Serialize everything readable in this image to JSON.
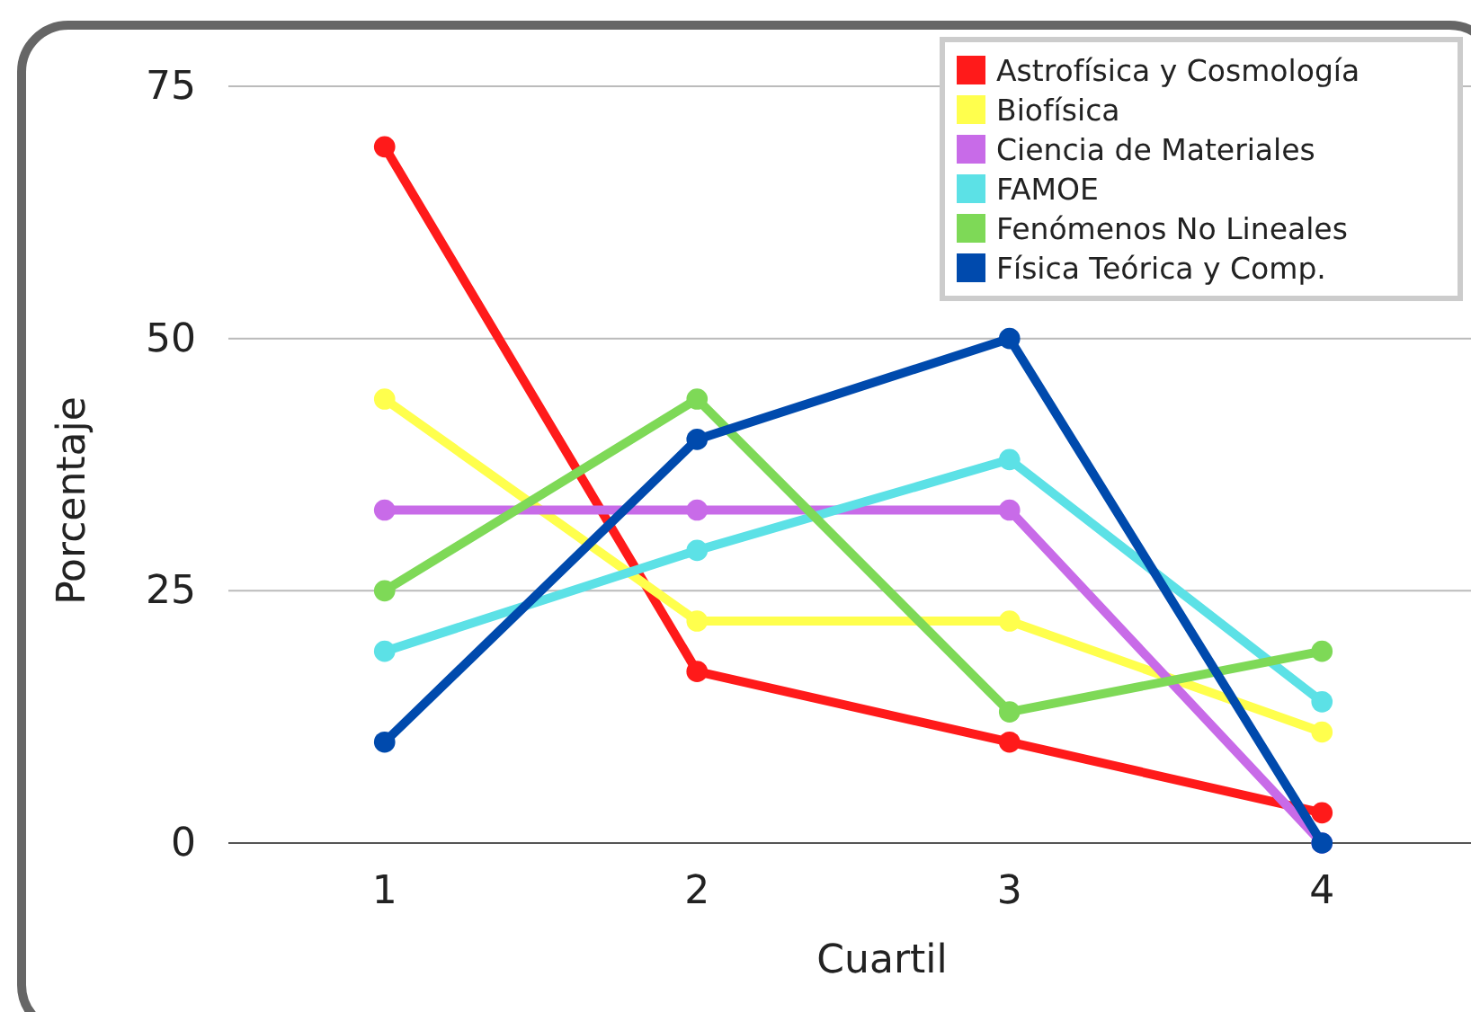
{
  "chart_data": {
    "type": "line",
    "xlabel": "Cuartil",
    "ylabel": "Porcentaje",
    "categories": [
      "1",
      "2",
      "3",
      "4"
    ],
    "ylim": [
      0,
      75
    ],
    "yticks": [
      0,
      25,
      50,
      75
    ],
    "grid": "y",
    "legend": "top right",
    "marker": "circle",
    "line_style": "solid",
    "series": [
      {
        "name": "Astrofísica y Cosmología",
        "color": "#ff1a1a",
        "values": [
          69,
          17,
          10,
          3
        ]
      },
      {
        "name": "Biofísica",
        "color": "#ffff4d",
        "values": [
          44,
          22,
          22,
          11
        ]
      },
      {
        "name": "Ciencia de Materiales",
        "color": "#c86be8",
        "values": [
          33,
          33,
          33,
          0
        ]
      },
      {
        "name": "FAMOE",
        "color": "#5ce1e6",
        "values": [
          19,
          29,
          38,
          14
        ]
      },
      {
        "name": "Fenómenos No Lineales",
        "color": "#7ed957",
        "values": [
          25,
          44,
          13,
          19
        ]
      },
      {
        "name": "Física Teórica y Comp.",
        "color": "#004aad",
        "values": [
          10,
          40,
          50,
          0
        ]
      }
    ]
  }
}
